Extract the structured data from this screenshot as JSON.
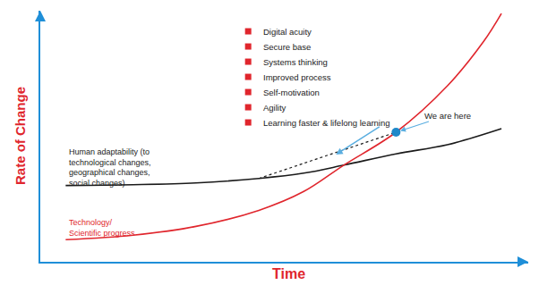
{
  "chart_data": {
    "type": "line",
    "xlabel": "Time",
    "ylabel": "Rate of Change",
    "xlim": [
      0,
      100
    ],
    "ylim": [
      0,
      100
    ],
    "xticks": [],
    "yticks": [],
    "tick_labels": false,
    "grid": false,
    "series": [
      {
        "name": "Human adaptability (to\ntechnological changes,\ngeographical changes,\nsocial changes)",
        "color": "#1a1a1a",
        "line_style": "solid",
        "x": [
          5.2,
          19,
          31.9,
          44.8,
          54,
          62.2,
          72.9,
          83.4,
          94.5
        ],
        "values": [
          30.4,
          30.7,
          31.4,
          33.2,
          35.3,
          38.5,
          43,
          46.6,
          53
        ]
      },
      {
        "name": "Technology/\nScientific progress",
        "color": "#e0262d",
        "line_style": "solid",
        "x": [
          5.2,
          19,
          31.9,
          44.8,
          54,
          62.2,
          72.9,
          83.4,
          90.8,
          94.5
        ],
        "values": [
          8.8,
          10.6,
          14.1,
          20.5,
          28,
          38.5,
          51.6,
          70,
          87.6,
          98.9
        ]
      },
      {
        "color": "#1a1a1a",
        "line_style": "dotted",
        "x": [
          44.8,
          72.9
        ],
        "values": [
          33.2,
          51.6
        ]
      },
      {
        "type": "scatter",
        "marker": "circle",
        "color": "#1e88c9",
        "x": [
          72.9
        ],
        "values": [
          51.6
        ]
      }
    ],
    "annotations": {
      "bullets": [
        "Digital acuity",
        "Secure base",
        "Systems thinking",
        "Improved process",
        "Self-motivation",
        "Agility",
        "Learning faster & lifelong learning"
      ],
      "marker_label": "We are here"
    }
  }
}
